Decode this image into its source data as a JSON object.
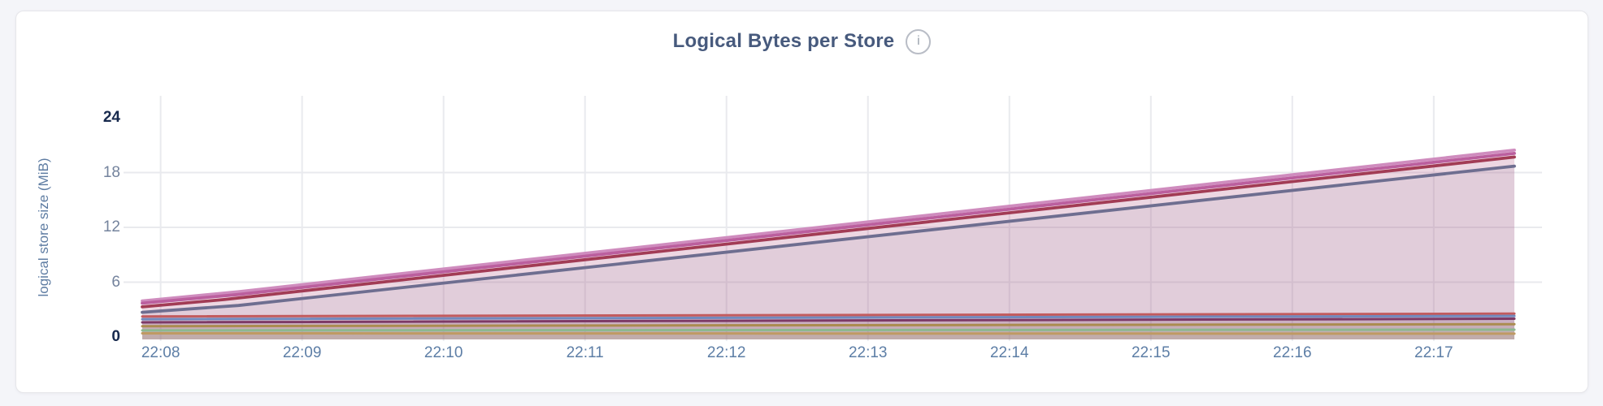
{
  "page": {
    "background": "#f4f5f9",
    "card_background": "#ffffff",
    "card_border": "#e6e6ea"
  },
  "header": {
    "title": "Logical Bytes per Store",
    "info_glyph": "i"
  },
  "chart_data": {
    "type": "area",
    "title": "Logical Bytes per Store",
    "xlabel": "",
    "ylabel": "logical store size (MiB)",
    "ylim": [
      0,
      24
    ],
    "xlim_minutes": [
      7.87,
      17.57
    ],
    "grid": true,
    "legend": "none",
    "colors": {
      "grid": "#e9eaee",
      "tick_default": "#74839d",
      "tick_emphasis": "#17294d",
      "x_tick": "#5d7ea6",
      "axis_title": "#5e7ca2",
      "title": "#475a7d"
    },
    "y_ticks": [
      {
        "value": 24,
        "label": "24",
        "emphasized": true
      },
      {
        "value": 18,
        "label": "18",
        "emphasized": false
      },
      {
        "value": 12,
        "label": "12",
        "emphasized": false
      },
      {
        "value": 6,
        "label": "6",
        "emphasized": false
      },
      {
        "value": 0,
        "label": "0",
        "emphasized": true
      }
    ],
    "x_ticks": [
      {
        "minute": 8,
        "label": "22:08"
      },
      {
        "minute": 9,
        "label": "22:09"
      },
      {
        "minute": 10,
        "label": "22:10"
      },
      {
        "minute": 11,
        "label": "22:11"
      },
      {
        "minute": 12,
        "label": "22:12"
      },
      {
        "minute": 13,
        "label": "22:13"
      },
      {
        "minute": 14,
        "label": "22:14"
      },
      {
        "minute": 15,
        "label": "22:15"
      },
      {
        "minute": 16,
        "label": "22:16"
      },
      {
        "minute": 17,
        "label": "22:17"
      }
    ],
    "series": [
      {
        "id": "series-1",
        "color": "#cf8cbe",
        "points": [
          [
            7.87,
            3.95
          ],
          [
            8.55,
            4.95
          ],
          [
            17.57,
            20.45
          ]
        ]
      },
      {
        "id": "series-2",
        "color": "#bb5f9e",
        "points": [
          [
            7.87,
            3.7
          ],
          [
            8.55,
            4.65
          ],
          [
            17.57,
            20.1
          ]
        ]
      },
      {
        "id": "series-3",
        "color": "#a23c55",
        "points": [
          [
            7.87,
            3.3
          ],
          [
            8.45,
            4.1
          ],
          [
            17.57,
            19.7
          ]
        ]
      },
      {
        "id": "series-4",
        "color": "#6e6e90",
        "points": [
          [
            7.87,
            2.7
          ],
          [
            8.55,
            3.45
          ],
          [
            17.57,
            18.7
          ]
        ]
      },
      {
        "id": "series-5",
        "color": "#c25b5e",
        "points": [
          [
            7.87,
            2.25
          ],
          [
            17.57,
            2.55
          ]
        ]
      },
      {
        "id": "series-6",
        "color": "#7289bd",
        "points": [
          [
            7.87,
            1.95
          ],
          [
            17.57,
            2.3
          ]
        ]
      },
      {
        "id": "series-7",
        "color": "#7d3a66",
        "points": [
          [
            7.87,
            1.6
          ],
          [
            17.57,
            2.0
          ]
        ]
      },
      {
        "id": "series-8",
        "color": "#ab8c50",
        "points": [
          [
            7.87,
            1.18
          ],
          [
            17.57,
            1.4
          ]
        ]
      },
      {
        "id": "series-9",
        "color": "#8db890",
        "points": [
          [
            7.87,
            0.72
          ],
          [
            17.57,
            0.8
          ]
        ]
      },
      {
        "id": "series-10",
        "color": "#bf9a63",
        "points": [
          [
            7.87,
            0.4
          ],
          [
            17.57,
            0.36
          ]
        ]
      }
    ]
  }
}
